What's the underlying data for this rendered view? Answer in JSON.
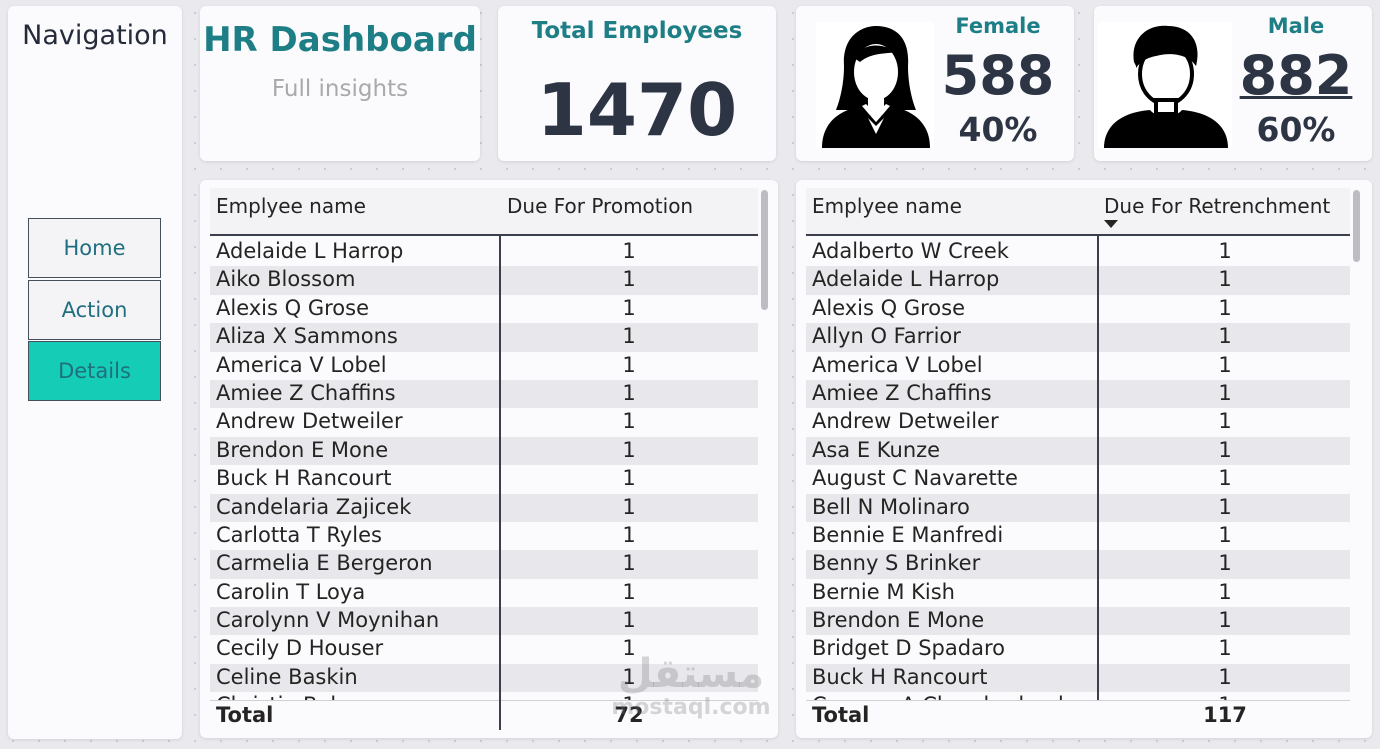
{
  "navigation": {
    "title": "Navigation",
    "buttons": [
      {
        "label": "Home"
      },
      {
        "label": "Action"
      },
      {
        "label": "Details"
      }
    ]
  },
  "header": {
    "title": "HR Dashboard",
    "subtitle": "Full insights"
  },
  "total_employees": {
    "label": "Total Employees",
    "value": "1470"
  },
  "female": {
    "label": "Female",
    "count": "588",
    "percent": "40%"
  },
  "male": {
    "label": "Male",
    "count": "882",
    "percent": "60%"
  },
  "promotion_table": {
    "col1": "Emplyee name",
    "col2": "Due For Promotion",
    "rows": [
      {
        "name": "Adelaide L Harrop",
        "value": "1"
      },
      {
        "name": "Aiko Blossom",
        "value": "1"
      },
      {
        "name": "Alexis Q Grose",
        "value": "1"
      },
      {
        "name": "Aliza X Sammons",
        "value": "1"
      },
      {
        "name": "America V Lobel",
        "value": "1"
      },
      {
        "name": "Amiee Z Chaffins",
        "value": "1"
      },
      {
        "name": "Andrew Detweiler",
        "value": "1"
      },
      {
        "name": "Brendon E Mone",
        "value": "1"
      },
      {
        "name": "Buck H Rancourt",
        "value": "1"
      },
      {
        "name": "Candelaria Zajicek",
        "value": "1"
      },
      {
        "name": "Carlotta T Ryles",
        "value": "1"
      },
      {
        "name": "Carmelia E Bergeron",
        "value": "1"
      },
      {
        "name": "Carolin T Loya",
        "value": "1"
      },
      {
        "name": "Carolynn V Moynihan",
        "value": "1"
      },
      {
        "name": "Cecily D Houser",
        "value": "1"
      },
      {
        "name": "Celine Baskin",
        "value": "1"
      },
      {
        "name": "Christie Baker",
        "value": "1"
      }
    ],
    "total_label": "Total",
    "total_value": "72"
  },
  "retrenchment_table": {
    "col1": "Emplyee name",
    "col2": "Due For Retrenchment",
    "rows": [
      {
        "name": "Adalberto W Creek",
        "value": "1"
      },
      {
        "name": "Adelaide L Harrop",
        "value": "1"
      },
      {
        "name": "Alexis Q Grose",
        "value": "1"
      },
      {
        "name": "Allyn O Farrior",
        "value": "1"
      },
      {
        "name": "America V Lobel",
        "value": "1"
      },
      {
        "name": "Amiee Z Chaffins",
        "value": "1"
      },
      {
        "name": "Andrew Detweiler",
        "value": "1"
      },
      {
        "name": "Asa E Kunze",
        "value": "1"
      },
      {
        "name": "August C Navarette",
        "value": "1"
      },
      {
        "name": "Bell N Molinaro",
        "value": "1"
      },
      {
        "name": "Bennie E Manfredi",
        "value": "1"
      },
      {
        "name": "Benny S Brinker",
        "value": "1"
      },
      {
        "name": "Bernie M Kish",
        "value": "1"
      },
      {
        "name": "Brendon E Mone",
        "value": "1"
      },
      {
        "name": "Bridget D Spadaro",
        "value": "1"
      },
      {
        "name": "Buck H Rancourt",
        "value": "1"
      },
      {
        "name": "Carmen A Chamberland",
        "value": "1"
      }
    ],
    "total_label": "Total",
    "total_value": "117"
  },
  "watermark": {
    "arabic": "مستقل",
    "latin": "mostaql.com"
  }
}
